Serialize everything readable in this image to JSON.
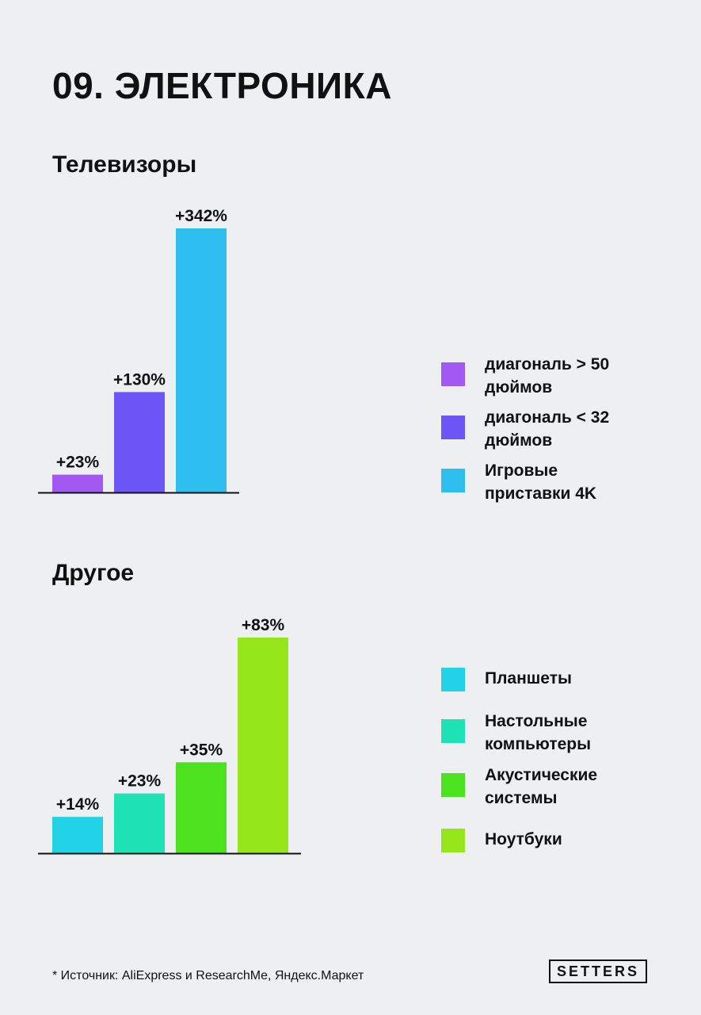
{
  "page": {
    "title": "09. ЭЛЕКТРОНИКА",
    "footnote": "* Источник: AliExpress и ResearchMe, Яндекс.Маркет",
    "logo": "SETTERS"
  },
  "chart_data": [
    {
      "type": "bar",
      "title": "Телевизоры",
      "categories": [
        "диагональ > 50 дюймов",
        "диагональ < 32 дюймов",
        "Игровые приставки 4K"
      ],
      "values": [
        23,
        130,
        342
      ],
      "value_labels": [
        "+23%",
        "+130%",
        "+342%"
      ],
      "unit": "%",
      "colors": [
        "#a259f4",
        "#6c55f6",
        "#2ebef0"
      ],
      "ylim": [
        0,
        342
      ],
      "grid": false,
      "legend_position": "right"
    },
    {
      "type": "bar",
      "title": "Другое",
      "categories": [
        "Планшеты",
        "Настольные компьютеры",
        "Акустические системы",
        "Ноутбуки"
      ],
      "values": [
        14,
        23,
        35,
        83
      ],
      "value_labels": [
        "+14%",
        "+23%",
        "+35%",
        "+83%"
      ],
      "unit": "%",
      "colors": [
        "#22d2e6",
        "#1fe3b6",
        "#4ce21f",
        "#95e61a"
      ],
      "ylim": [
        0,
        83
      ],
      "grid": false,
      "legend_position": "right"
    }
  ],
  "legends": [
    {
      "items": [
        {
          "line1": "диагональ > 50",
          "line2": "дюймов"
        },
        {
          "line1": "диагональ < 32",
          "line2": "дюймов"
        },
        {
          "line1": "Игровые",
          "line2": "приставки 4K"
        }
      ]
    },
    {
      "items": [
        {
          "line1": "Планшеты",
          "line2": ""
        },
        {
          "line1": "Настольные",
          "line2": "компьютеры"
        },
        {
          "line1": "Акустические",
          "line2": "системы"
        },
        {
          "line1": "Ноутбуки",
          "line2": ""
        }
      ]
    }
  ]
}
